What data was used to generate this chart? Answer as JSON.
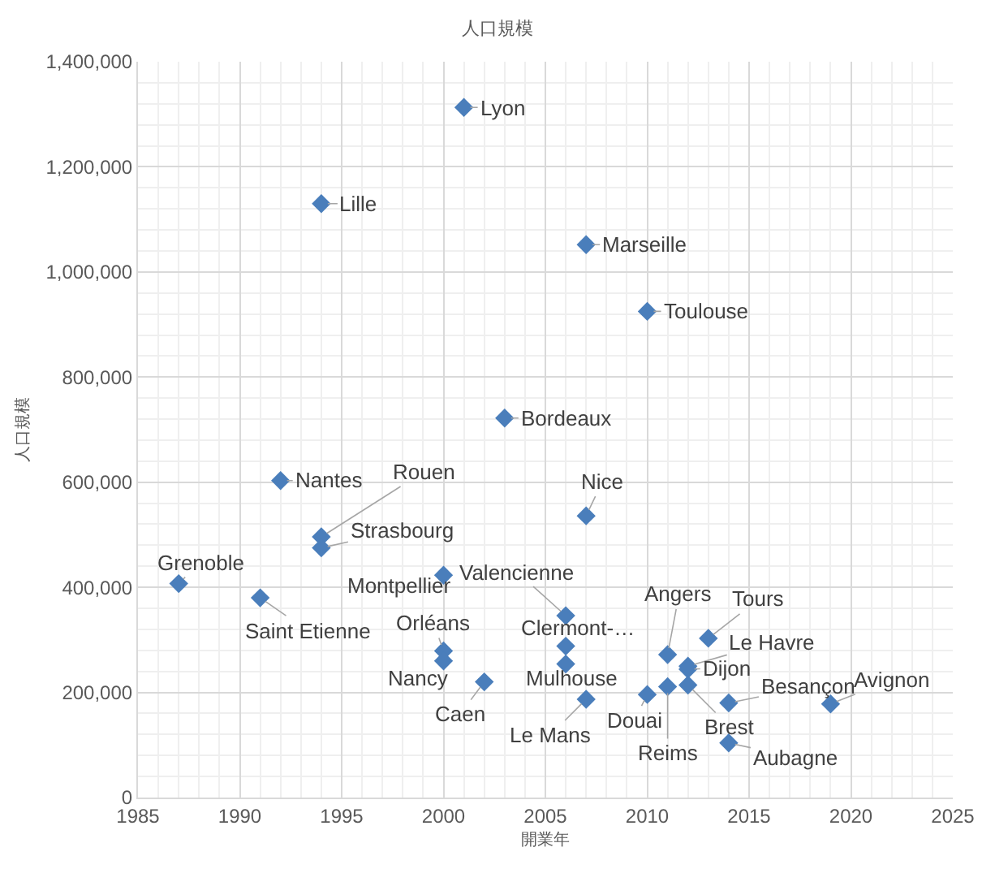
{
  "chart_data": {
    "type": "scatter",
    "title": "人口規模",
    "xlabel": "開業年",
    "ylabel": "人口規模",
    "x": [
      2001,
      1994,
      2007,
      2010,
      2003,
      1992,
      1994,
      1994,
      1987,
      1991,
      2000,
      2000,
      2000,
      2002,
      2007,
      2006,
      2006,
      2006,
      2007,
      2010,
      2011,
      2011,
      2013,
      2012,
      2012,
      2012,
      2014,
      2014,
      2019
    ],
    "values": [
      1313000,
      1130000,
      1052000,
      925000,
      722000,
      603000,
      496000,
      475000,
      407000,
      380000,
      423000,
      279000,
      260000,
      220000,
      536000,
      346000,
      288000,
      254000,
      187000,
      196000,
      272000,
      211000,
      303000,
      250000,
      244000,
      214000,
      180000,
      104000,
      178000
    ],
    "value_labels": [
      "Lyon",
      "Lille",
      "Marseille",
      "Toulouse",
      "Bordeaux",
      "Nantes",
      "Rouen",
      "Strasbourg",
      "Grenoble",
      "Saint Etienne",
      "Montpellier",
      "Orléans",
      "Nancy",
      "Caen",
      "Nice",
      "Valencienne",
      "Clermont-…",
      "Mulhouse",
      "Le Mans",
      "Douai",
      "Angers",
      "Reims",
      "Tours",
      "Le Havre",
      "Dijon",
      "Brest",
      "Besançon",
      "Aubagne",
      "Avignon"
    ],
    "color": "#4a7ebb",
    "marker": "diamond",
    "grid": true,
    "legend": false,
    "xlim": [
      1985,
      2025
    ],
    "xticks": [
      1985,
      1990,
      1995,
      2000,
      2005,
      2010,
      2015,
      2020,
      2025
    ],
    "ylim": [
      0,
      1400000
    ],
    "yticks": [
      0,
      {
        "value": 200000,
        "label": "200,000"
      },
      {
        "value": 400000,
        "label": "400,000"
      },
      {
        "value": 600000,
        "label": "600,000"
      },
      {
        "value": 800000,
        "label": "800,000"
      },
      {
        "value": 1000000,
        "label": "1,000,000"
      },
      {
        "value": 1200000,
        "label": "1,200,000"
      },
      {
        "value": 1400000,
        "label": "1,400,000"
      }
    ]
  }
}
